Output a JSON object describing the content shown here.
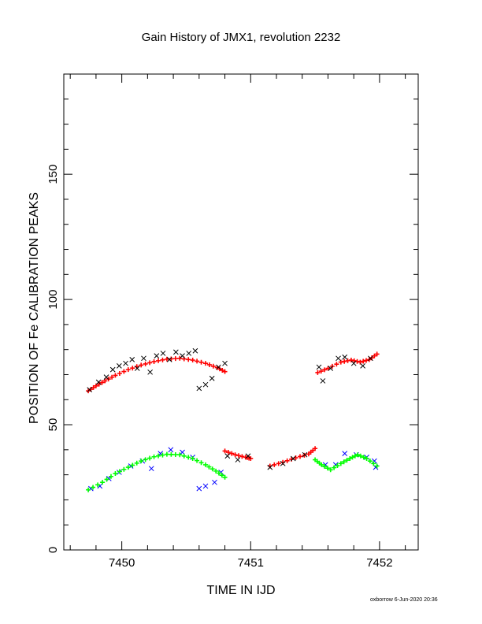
{
  "chart_data": {
    "type": "scatter",
    "title": "Gain History of JMX1, revolution 2232",
    "xlabel": "TIME IN IJD",
    "ylabel": "POSITION OF Fe CALIBRATION PEAKS",
    "xlim": [
      7449.55,
      7452.3
    ],
    "ylim": [
      0,
      190
    ],
    "x_ticks": [
      7450,
      7451,
      7452
    ],
    "y_ticks": [
      0,
      50,
      100,
      150
    ],
    "grid": false,
    "colors": {
      "red": "#ff0000",
      "black": "#000000",
      "blue": "#0000ff",
      "green": "#00ff00"
    },
    "series": [
      {
        "color": "#ff0000",
        "marker": "plus",
        "segments": [
          [
            [
              7449.74,
              63.5
            ],
            [
              7449.8,
              65.5
            ],
            [
              7449.87,
              67.5
            ],
            [
              7449.95,
              69.7
            ],
            [
              7450.05,
              72
            ],
            [
              7450.15,
              73.8
            ],
            [
              7450.25,
              75.2
            ],
            [
              7450.35,
              76.2
            ],
            [
              7450.45,
              76.5
            ],
            [
              7450.55,
              75.8
            ],
            [
              7450.65,
              74.5
            ],
            [
              7450.74,
              72.8
            ],
            [
              7450.8,
              71.2
            ]
          ],
          [
            [
              7450.8,
              39.5
            ],
            [
              7450.88,
              38
            ],
            [
              7450.96,
              37
            ],
            [
              7451.0,
              36.5
            ]
          ],
          [
            [
              7451.15,
              33.5
            ],
            [
              7451.25,
              35
            ],
            [
              7451.35,
              36.8
            ],
            [
              7451.45,
              38.3
            ],
            [
              7451.5,
              40.5
            ]
          ],
          [
            [
              7451.52,
              70.8
            ],
            [
              7451.6,
              72.5
            ],
            [
              7451.7,
              75
            ],
            [
              7451.78,
              75.8
            ],
            [
              7451.85,
              75
            ],
            [
              7451.92,
              76
            ],
            [
              7451.98,
              78.2
            ]
          ]
        ]
      },
      {
        "color": "#000000",
        "marker": "cross",
        "segments": [
          [
            [
              7449.75,
              64
            ],
            [
              7449.82,
              67
            ],
            [
              7449.88,
              69
            ],
            [
              7449.93,
              72
            ],
            [
              7449.98,
              73.5
            ],
            [
              7450.03,
              74.5
            ],
            [
              7450.08,
              76
            ],
            [
              7450.12,
              72.5
            ],
            [
              7450.17,
              76.5
            ],
            [
              7450.22,
              71
            ],
            [
              7450.27,
              77.5
            ],
            [
              7450.32,
              78.5
            ],
            [
              7450.37,
              76
            ],
            [
              7450.42,
              79
            ],
            [
              7450.47,
              77.5
            ],
            [
              7450.52,
              78.5
            ],
            [
              7450.57,
              79.5
            ],
            [
              7450.6,
              64.5
            ],
            [
              7450.65,
              66
            ],
            [
              7450.7,
              68.5
            ],
            [
              7450.75,
              73
            ],
            [
              7450.8,
              74.5
            ]
          ],
          [
            [
              7450.82,
              37.5
            ],
            [
              7450.9,
              36
            ],
            [
              7450.98,
              37.5
            ]
          ],
          [
            [
              7451.15,
              33
            ],
            [
              7451.25,
              34.5
            ],
            [
              7451.33,
              36.5
            ],
            [
              7451.42,
              38
            ]
          ],
          [
            [
              7451.53,
              73
            ],
            [
              7451.56,
              67.5
            ],
            [
              7451.62,
              72.5
            ],
            [
              7451.68,
              76.5
            ],
            [
              7451.73,
              77
            ],
            [
              7451.8,
              74.5
            ],
            [
              7451.87,
              73.5
            ],
            [
              7451.93,
              76.5
            ]
          ]
        ]
      },
      {
        "color": "#0000ff",
        "marker": "cross",
        "segments": [
          [
            [
              7449.76,
              24.5
            ],
            [
              7449.83,
              25.5
            ],
            [
              7449.9,
              28.5
            ],
            [
              7449.98,
              31
            ],
            [
              7450.07,
              33.5
            ],
            [
              7450.16,
              35.5
            ],
            [
              7450.23,
              32.5
            ],
            [
              7450.3,
              38.5
            ],
            [
              7450.38,
              40
            ],
            [
              7450.47,
              39
            ],
            [
              7450.55,
              37
            ],
            [
              7450.6,
              24.5
            ],
            [
              7450.65,
              25.5
            ],
            [
              7450.72,
              27
            ],
            [
              7450.77,
              31
            ]
          ],
          [
            [
              7451.58,
              34
            ],
            [
              7451.66,
              34
            ],
            [
              7451.73,
              38.5
            ],
            [
              7451.82,
              38
            ],
            [
              7451.9,
              37
            ],
            [
              7451.96,
              35.5
            ],
            [
              7451.97,
              33
            ]
          ]
        ]
      },
      {
        "color": "#00ff00",
        "marker": "plus",
        "segments": [
          [
            [
              7449.74,
              24
            ],
            [
              7449.85,
              27
            ],
            [
              7449.95,
              30.5
            ],
            [
              7450.05,
              33
            ],
            [
              7450.15,
              35.5
            ],
            [
              7450.25,
              37.2
            ],
            [
              7450.35,
              38.2
            ],
            [
              7450.45,
              38
            ],
            [
              7450.55,
              36.5
            ],
            [
              7450.65,
              34
            ],
            [
              7450.73,
              31.5
            ],
            [
              7450.8,
              29
            ]
          ],
          [
            [
              7451.5,
              36
            ],
            [
              7451.55,
              34
            ],
            [
              7451.62,
              32
            ],
            [
              7451.7,
              34.5
            ],
            [
              7451.77,
              36.5
            ],
            [
              7451.83,
              38
            ],
            [
              7451.9,
              36.5
            ],
            [
              7451.98,
              33.5
            ]
          ]
        ]
      }
    ]
  },
  "footer": {
    "credit": "oxborrow  6-Jun-2020 20:36"
  }
}
